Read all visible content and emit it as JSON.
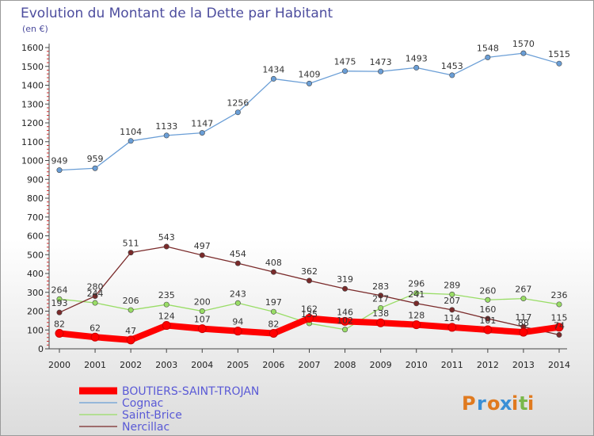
{
  "chart_data": {
    "type": "line",
    "title": "Evolution du Montant de la Dette par Habitant",
    "subtitle": "(en €)",
    "ylim": [
      0,
      1600
    ],
    "yticks": [
      0,
      100,
      200,
      300,
      400,
      500,
      600,
      700,
      800,
      900,
      1000,
      1100,
      1200,
      1300,
      1400,
      1500,
      1600
    ],
    "categories": [
      "2000",
      "2001",
      "2002",
      "2003",
      "2004",
      "2005",
      "2006",
      "2007",
      "2008",
      "2009",
      "2010",
      "2011",
      "2012",
      "2013",
      "2014"
    ],
    "grid": false,
    "legend_position": "bottom-left",
    "series": [
      {
        "name": "BOUTIERS-SAINT-TROJAN",
        "color": "#ff0000",
        "values": [
          82,
          62,
          47,
          124,
          107,
          94,
          82,
          162,
          146,
          138,
          128,
          114,
          101,
          88,
          115
        ]
      },
      {
        "name": "Cognac",
        "color": "#6a9ed6",
        "values": [
          949,
          959,
          1104,
          1133,
          1147,
          1256,
          1434,
          1409,
          1475,
          1473,
          1493,
          1453,
          1548,
          1570,
          1515
        ]
      },
      {
        "name": "Saint-Brice",
        "color": "#99dd66",
        "values": [
          264,
          244,
          206,
          235,
          200,
          243,
          197,
          135,
          102,
          217,
          296,
          289,
          260,
          267,
          236
        ]
      },
      {
        "name": "Nercillac",
        "color": "#7a2a2a",
        "values": [
          193,
          280,
          511,
          543,
          497,
          454,
          408,
          362,
          319,
          283,
          241,
          207,
          160,
          117,
          74
        ]
      }
    ]
  },
  "logo": {
    "text": "Proxiti",
    "letters": [
      "P",
      "r",
      "o",
      "x",
      "i",
      "t",
      "i"
    ],
    "colors": [
      "#e07a1f",
      "#3a8fd6",
      "#e07a1f",
      "#3a8fd6",
      "#e07a1f",
      "#7ab84a",
      "#e07a1f"
    ]
  }
}
